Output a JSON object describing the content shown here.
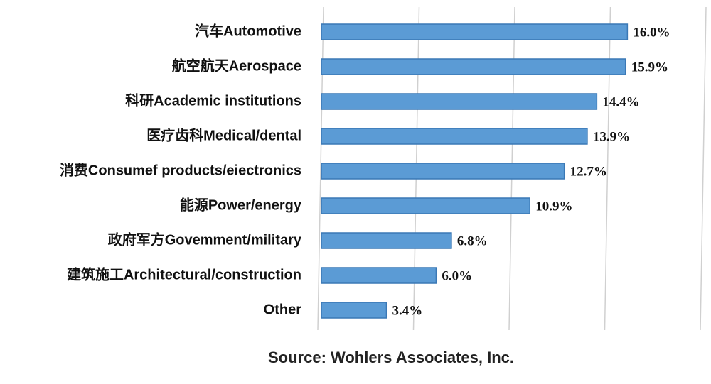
{
  "chart_data": {
    "type": "bar",
    "orientation": "horizontal",
    "categories": [
      "汽车Automotive",
      "航空航天Aerospace",
      "科研Academic institutions",
      "医疗齿科Medical/dental",
      "消费Consumef products/eiectronics",
      "能源Power/energy",
      "政府军方Govemment/military",
      "建筑施工Architectural/construction",
      "Other"
    ],
    "values": [
      16.0,
      15.9,
      14.4,
      13.9,
      12.7,
      10.9,
      6.8,
      6.0,
      3.4
    ],
    "value_labels": [
      "16.0%",
      "15.9%",
      "14.4%",
      "13.9%",
      "12.7%",
      "10.9%",
      "6.8%",
      "6.0%",
      "3.4%"
    ],
    "color": "#5b9bd5",
    "xlim": [
      0,
      20
    ],
    "xticks": [
      0,
      5,
      10,
      15,
      20
    ],
    "grid": true,
    "source": "Source: Wohlers Associates, Inc."
  }
}
